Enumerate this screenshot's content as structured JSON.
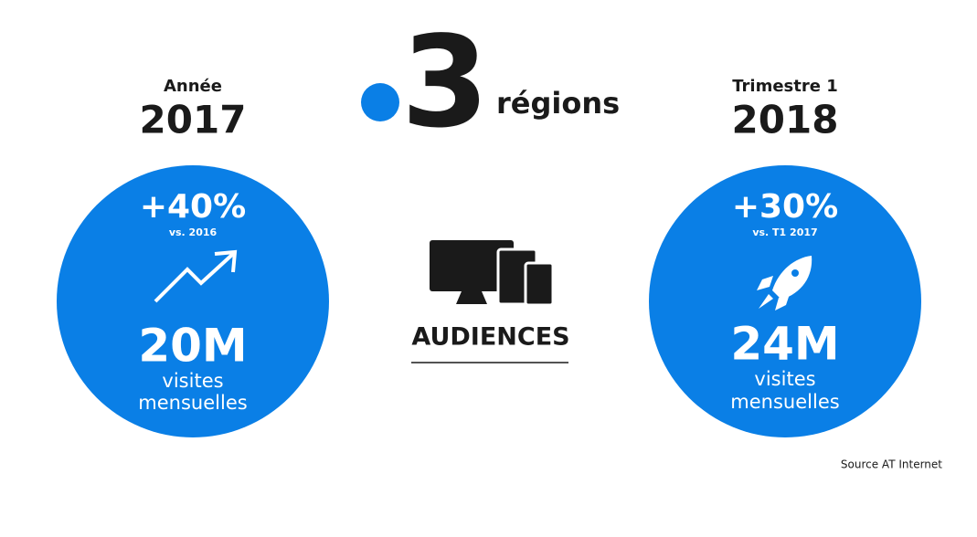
{
  "logo": {
    "number": "3",
    "label": "régions"
  },
  "left": {
    "caption": "Année",
    "year": "2017",
    "growth": "+40%",
    "comparison": "vs. 2016",
    "audience": "20M",
    "unit_line1": "visites",
    "unit_line2": "mensuelles"
  },
  "center": {
    "label": "AUDIENCES"
  },
  "right": {
    "caption": "Trimestre 1",
    "year": "2018",
    "growth": "+30%",
    "comparison": "vs. T1 2017",
    "audience": "24M",
    "unit_line1": "visites",
    "unit_line2": "mensuelles"
  },
  "source": "Source AT Internet"
}
